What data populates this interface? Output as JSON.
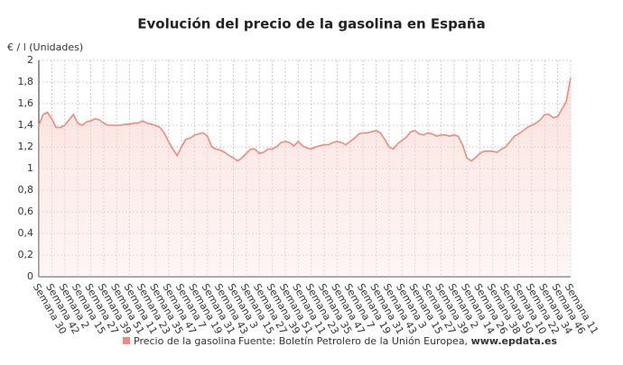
{
  "chart_data": {
    "type": "line",
    "title": "Evolución del precio de la gasolina en España",
    "y_label": "€ / l (Unidades)",
    "categories": [
      "Semana 30",
      null,
      null,
      "Semana 42",
      null,
      null,
      "Semana 2",
      null,
      null,
      "Semana 15",
      null,
      null,
      "Semana 27",
      null,
      null,
      "Semana 39",
      null,
      null,
      "Semana 51",
      null,
      null,
      "Semana 11",
      null,
      null,
      "Semana 23",
      null,
      null,
      "Semana 35",
      null,
      null,
      "Semana 47",
      null,
      null,
      "Semana 7",
      null,
      null,
      "Semana 19",
      null,
      null,
      "Semana 31",
      null,
      null,
      "Semana 43",
      null,
      null,
      "Semana 3",
      null,
      null,
      "Semana 15",
      null,
      null,
      "Semana 27",
      null,
      null,
      "Semana 39",
      null,
      null,
      "Semana 51",
      null,
      null,
      "Semana 11",
      null,
      null,
      "Semana 23",
      null,
      null,
      "Semana 35",
      null,
      null,
      "Semana 47",
      null,
      null,
      "Semana 7",
      null,
      null,
      "Semana 19",
      null,
      null,
      "Semana 31",
      null,
      null,
      "Semana 43",
      null,
      null,
      "Semana 3",
      null,
      null,
      "Semana 15",
      null,
      null,
      "Semana 27",
      null,
      null,
      "Semana 39",
      null,
      null,
      "Semana 2",
      null,
      null,
      "Semana 14",
      null,
      null,
      "Semana 26",
      null,
      null,
      "Semana 38",
      null,
      null,
      "Semana 50",
      null,
      null,
      "Semana 10",
      null,
      null,
      "Semana 22",
      null,
      null,
      "Semana 34",
      null,
      null,
      "Semana 46",
      null,
      null,
      "Semana 11"
    ],
    "series": [
      {
        "name": "Precio de la gasolina",
        "color": "#ec8b7e",
        "values": [
          1.4,
          1.5,
          1.52,
          1.46,
          1.38,
          1.38,
          1.4,
          1.45,
          1.5,
          1.42,
          1.4,
          1.43,
          1.44,
          1.46,
          1.45,
          1.42,
          1.4,
          1.4,
          1.4,
          1.4,
          1.41,
          1.41,
          1.42,
          1.42,
          1.44,
          1.42,
          1.41,
          1.4,
          1.38,
          1.33,
          1.25,
          1.18,
          1.12,
          1.2,
          1.27,
          1.28,
          1.31,
          1.32,
          1.33,
          1.3,
          1.2,
          1.18,
          1.17,
          1.15,
          1.12,
          1.1,
          1.07,
          1.1,
          1.14,
          1.18,
          1.18,
          1.14,
          1.15,
          1.18,
          1.18,
          1.2,
          1.24,
          1.25,
          1.24,
          1.21,
          1.25,
          1.21,
          1.19,
          1.18,
          1.2,
          1.21,
          1.22,
          1.22,
          1.24,
          1.25,
          1.24,
          1.22,
          1.25,
          1.28,
          1.32,
          1.33,
          1.33,
          1.34,
          1.35,
          1.33,
          1.27,
          1.2,
          1.18,
          1.23,
          1.26,
          1.29,
          1.34,
          1.35,
          1.32,
          1.31,
          1.33,
          1.32,
          1.3,
          1.31,
          1.31,
          1.3,
          1.31,
          1.3,
          1.22,
          1.1,
          1.07,
          1.1,
          1.14,
          1.16,
          1.16,
          1.16,
          1.15,
          1.18,
          1.2,
          1.25,
          1.3,
          1.32,
          1.35,
          1.38,
          1.4,
          1.42,
          1.45,
          1.5,
          1.5,
          1.47,
          1.48,
          1.55,
          1.62,
          1.84
        ]
      }
    ],
    "ylim": [
      0,
      2
    ],
    "yticks": [
      0,
      {
        "value": 0.2,
        "label": "0,2"
      },
      {
        "value": 0.4,
        "label": "0,4"
      },
      {
        "value": 0.6,
        "label": "0,6"
      },
      {
        "value": 0.8,
        "label": "0,8"
      },
      1,
      {
        "value": 1.2,
        "label": "1,2"
      },
      {
        "value": 1.4,
        "label": "1,4"
      },
      {
        "value": 1.6,
        "label": "1,6"
      },
      {
        "value": 1.8,
        "label": "1,8"
      },
      2
    ],
    "grid": true,
    "source": "Fuente: Boletín Petrolero de la Unión Europea,",
    "source_link": "www.epdata.es"
  }
}
